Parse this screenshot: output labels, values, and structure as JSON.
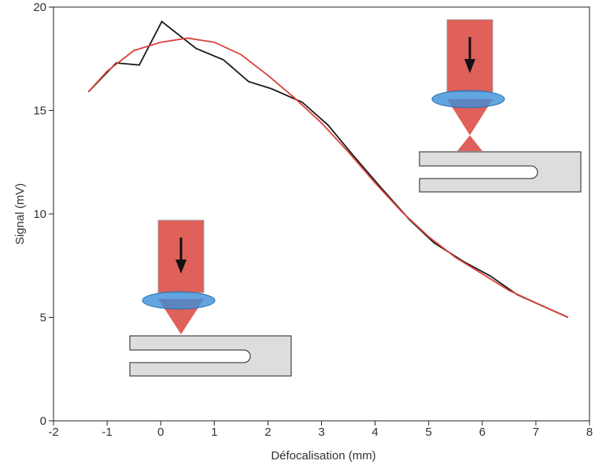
{
  "chart_data": {
    "type": "line",
    "xlabel": "Défocalisation (mm)",
    "ylabel": "Signal (mV)",
    "xlim": [
      -2,
      8
    ],
    "xticks": [
      -2,
      -1,
      0,
      1,
      2,
      3,
      4,
      5,
      6,
      7,
      8
    ],
    "ylim": [
      0,
      20
    ],
    "yticks": [
      0,
      5,
      10,
      15,
      20
    ],
    "series": [
      {
        "color": "#1a1a1a",
        "x": [
          -1.35,
          -0.83,
          -0.4,
          0.02,
          0.66,
          1.17,
          1.64,
          2.07,
          2.64,
          3.12,
          3.6,
          4.1,
          4.65,
          5.1,
          5.65,
          6.15,
          6.65,
          7.6
        ],
        "values": [
          15.9,
          17.3,
          17.2,
          19.3,
          18.0,
          17.45,
          16.4,
          16.05,
          15.4,
          14.3,
          12.8,
          11.3,
          9.7,
          8.6,
          7.7,
          7.0,
          6.1,
          5.0
        ]
      },
      {
        "color": "#d9413a",
        "x": [
          -1.35,
          -1,
          -0.5,
          0,
          0.5,
          1,
          1.5,
          2,
          2.5,
          3,
          3.5,
          4,
          4.5,
          5,
          5.5,
          6,
          6.5,
          7,
          7.6
        ],
        "values": [
          15.9,
          16.9,
          17.9,
          18.3,
          18.5,
          18.3,
          17.7,
          16.7,
          15.6,
          14.4,
          13.0,
          11.5,
          10.1,
          8.9,
          7.9,
          7.1,
          6.3,
          5.7,
          5.0
        ]
      }
    ]
  }
}
